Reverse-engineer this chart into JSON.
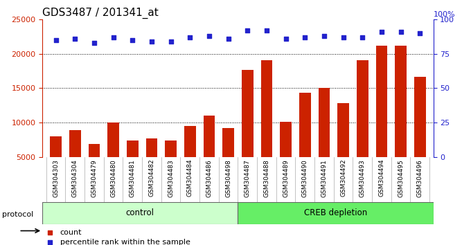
{
  "title": "GDS3487 / 201341_at",
  "samples": [
    "GSM304303",
    "GSM304304",
    "GSM304479",
    "GSM304480",
    "GSM304481",
    "GSM304482",
    "GSM304483",
    "GSM304484",
    "GSM304486",
    "GSM304498",
    "GSM304487",
    "GSM304488",
    "GSM304489",
    "GSM304490",
    "GSM304491",
    "GSM304492",
    "GSM304493",
    "GSM304494",
    "GSM304495",
    "GSM304496"
  ],
  "counts": [
    8000,
    8900,
    6900,
    10000,
    7400,
    7700,
    7400,
    9500,
    11000,
    9200,
    17700,
    19100,
    10100,
    14300,
    15000,
    12800,
    19100,
    21200,
    21200,
    16700
  ],
  "percentile_ranks": [
    85,
    86,
    83,
    87,
    85,
    84,
    84,
    87,
    88,
    86,
    92,
    92,
    86,
    87,
    88,
    87,
    87,
    91,
    91,
    90
  ],
  "bar_color": "#cc2200",
  "dot_color": "#2222cc",
  "background_color": "#ffffff",
  "plot_bg_color": "#ffffff",
  "left_axis_color": "#cc2200",
  "right_axis_color": "#2222cc",
  "grid_color": "#000000",
  "ylim_left": [
    5000,
    25000
  ],
  "ylim_right": [
    0,
    100
  ],
  "yticks_left": [
    5000,
    10000,
    15000,
    20000,
    25000
  ],
  "yticks_right": [
    0,
    25,
    50,
    75,
    100
  ],
  "control_label": "control",
  "creb_label": "CREB depletion",
  "protocol_label": "protocol",
  "legend_count_label": "count",
  "legend_pct_label": "percentile rank within the sample",
  "title_fontsize": 11,
  "tick_fontsize": 8,
  "control_color": "#ccffcc",
  "creb_color": "#66ee66",
  "label_bg_color": "#d0d0d0"
}
